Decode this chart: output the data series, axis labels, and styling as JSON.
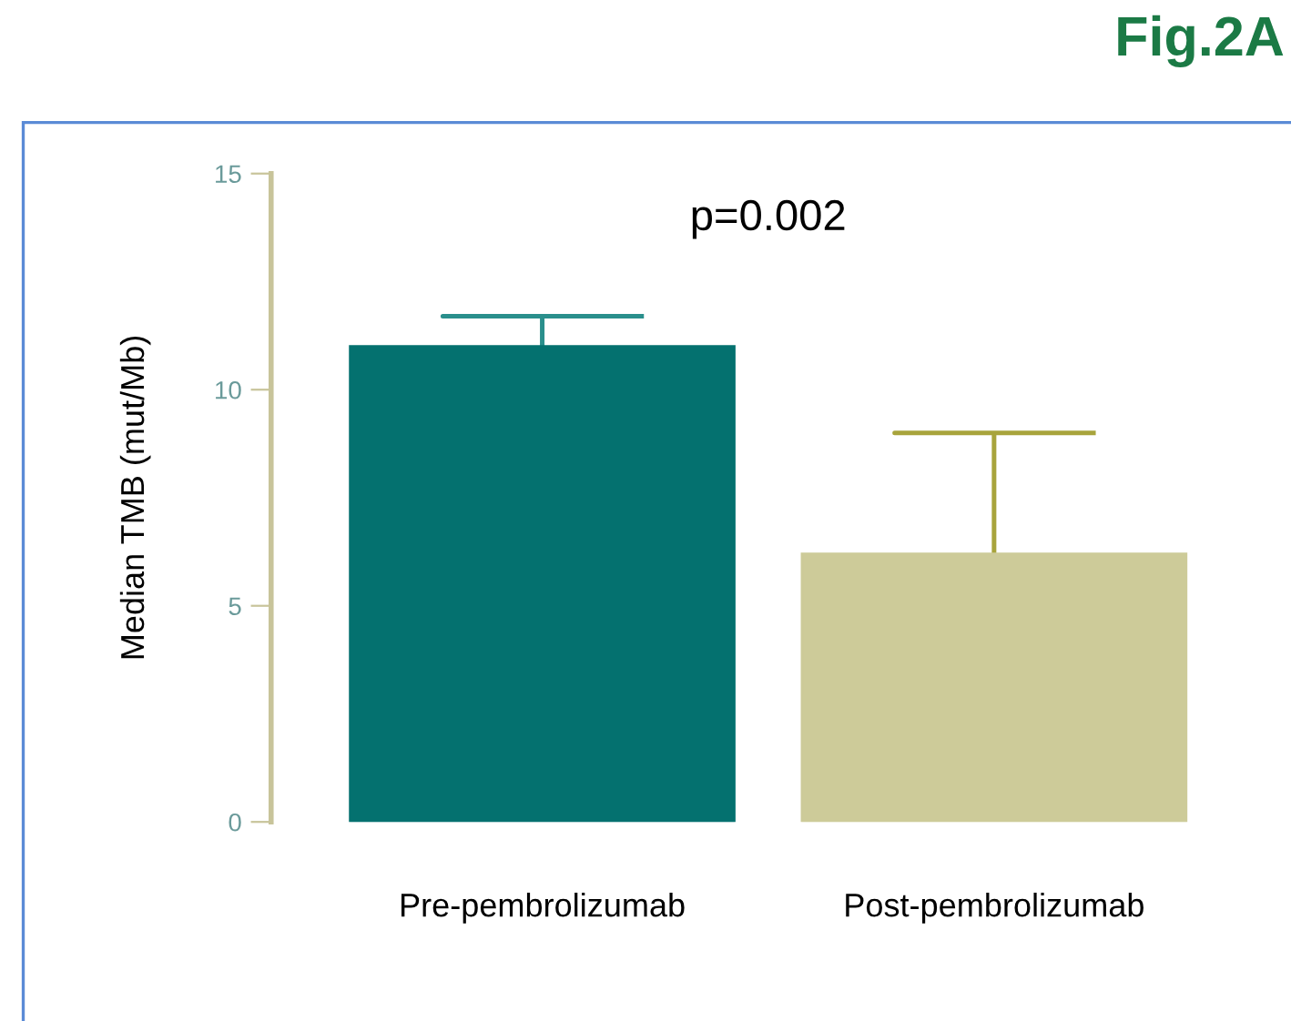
{
  "chart_data": {
    "type": "bar",
    "title": "Fig.2A",
    "ylabel": "Median TMB (mut/Mb)",
    "categories": [
      "Pre-pembrolizumab",
      "Post-pembrolizumab"
    ],
    "values": [
      11.0,
      6.2
    ],
    "colors": [
      "#04716f",
      "#cdcb99"
    ],
    "errors": [
      [
        11.0,
        11.7
      ],
      [
        6.2,
        9.0
      ]
    ],
    "annotations": [
      "p=0.002"
    ],
    "ylim": [
      0,
      15
    ],
    "yticks": [
      0,
      5,
      10,
      15
    ],
    "grid": false,
    "legend": false
  }
}
